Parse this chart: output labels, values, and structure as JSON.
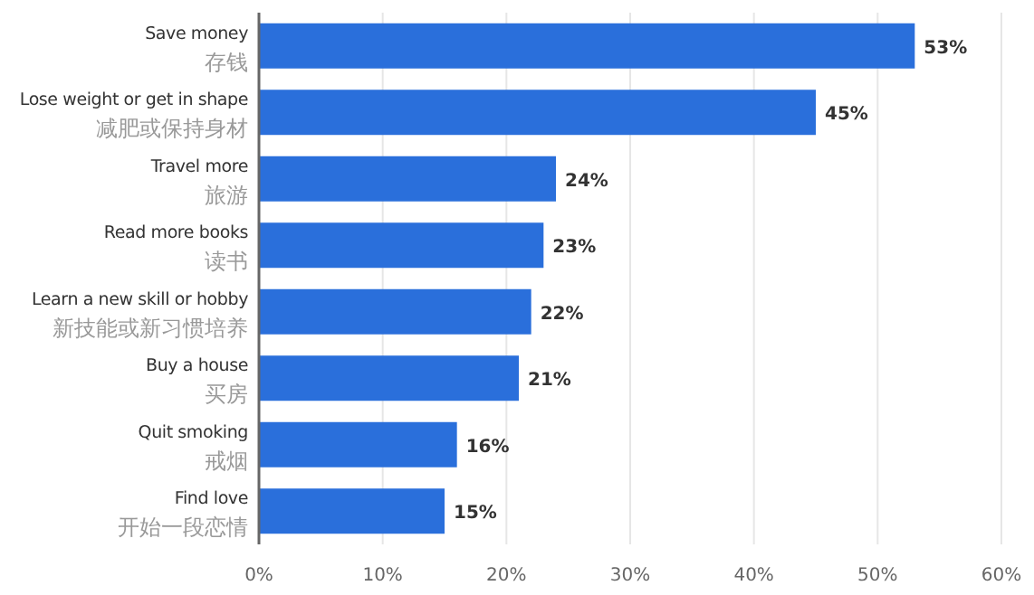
{
  "chart_data": {
    "type": "bar",
    "orientation": "horizontal",
    "categories": [
      "Save money\n存钱",
      "Lose weight or get in shape\n减肥或保持身材",
      "Travel more\n旅游",
      "Read more books\n读书",
      "Learn a new skill or hobby\n新技能或新习惯培养",
      "Buy a house\n买房",
      "Quit smoking\n戒烟",
      "Find love\n开始一段恋情"
    ],
    "values": [
      53,
      45,
      24,
      23,
      22,
      21,
      16,
      15
    ],
    "value_labels": [
      "53%",
      "45%",
      "24%",
      "23%",
      "22%",
      "21%",
      "16%",
      "15%"
    ],
    "color": "#2a6fdb",
    "xlim": [
      0,
      60
    ],
    "xticks": [
      {
        "value": 0,
        "label": "0%"
      },
      {
        "value": 10,
        "label": "10%"
      },
      {
        "value": 20,
        "label": "20%"
      },
      {
        "value": 30,
        "label": "30%"
      },
      {
        "value": 40,
        "label": "40%"
      },
      {
        "value": 50,
        "label": "50%"
      },
      {
        "value": 60,
        "label": "60%"
      }
    ],
    "grid": "x"
  }
}
